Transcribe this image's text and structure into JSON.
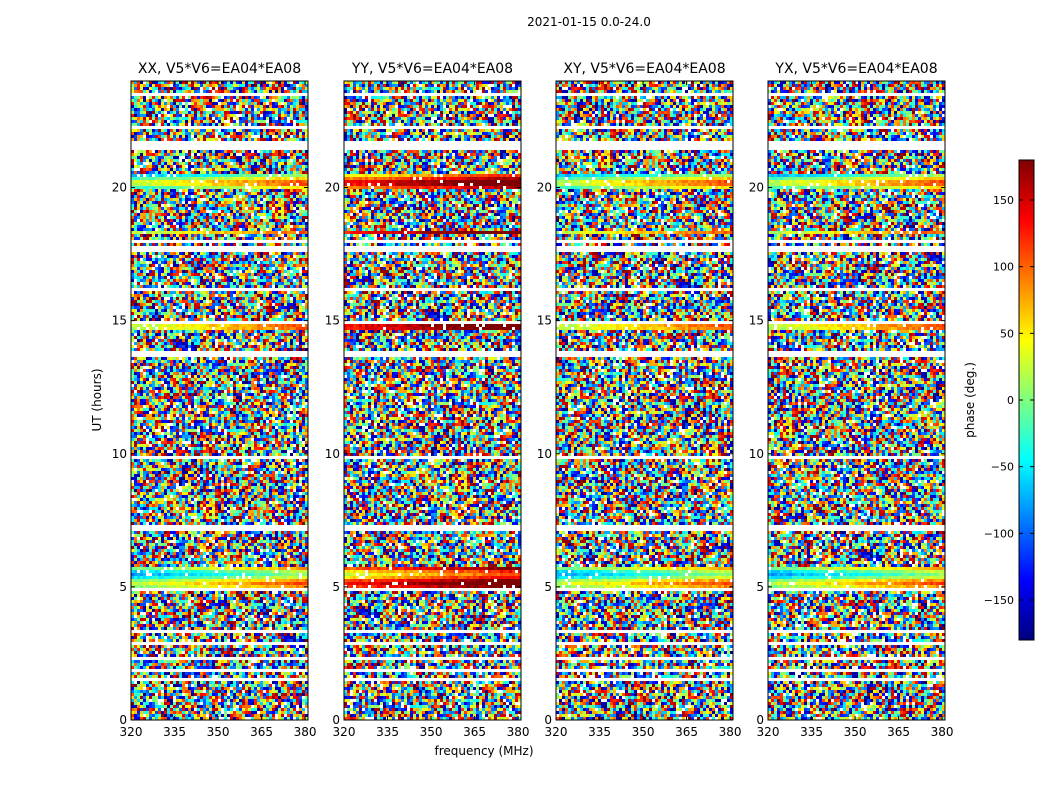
{
  "figure": {
    "suptitle": "2021-01-15 0.0-24.0",
    "xlabel": "frequency (MHz)",
    "ylabel": "UT (hours)"
  },
  "colorbar": {
    "label": "phase (deg.)",
    "ticks": [
      150,
      100,
      50,
      0,
      -50,
      -100,
      -150
    ],
    "tick_labels": [
      "150",
      "100",
      "50",
      "0",
      "−50",
      "−100",
      "−150"
    ],
    "range": [
      -180,
      180
    ],
    "colormap": "jet",
    "colormap_stops": [
      "#00007f",
      "#0000ff",
      "#007fff",
      "#00ffff",
      "#7fff7f",
      "#ffff00",
      "#ff7f00",
      "#ff0000",
      "#7f0000"
    ]
  },
  "chart_data": {
    "type": "heatmap",
    "value_meaning": "visibility phase in degrees, colour-mapped; white = flagged / no data",
    "xlim": [
      320,
      381
    ],
    "ylim": [
      0,
      24
    ],
    "xticks": [
      320,
      335,
      350,
      365,
      380
    ],
    "xtick_labels": [
      "320",
      "335",
      "350",
      "365",
      "380"
    ],
    "yticks": [
      0,
      5,
      10,
      15,
      20
    ],
    "ytick_labels": [
      "0",
      "5",
      "10",
      "15",
      "20"
    ],
    "panels": [
      {
        "title": "XX, V5*V6=EA04*EA08",
        "polarization": "XX"
      },
      {
        "title": "YY, V5*V6=EA04*EA08",
        "polarization": "YY"
      },
      {
        "title": "XY, V5*V6=EA04*EA08",
        "polarization": "XY"
      },
      {
        "title": "YX, V5*V6=EA04*EA08",
        "polarization": "YX"
      }
    ],
    "flagged_time_ranges_hours": [
      [
        1.45,
        1.55
      ],
      [
        1.8,
        1.9
      ],
      [
        2.3,
        2.4
      ],
      [
        2.85,
        2.95
      ],
      [
        3.3,
        3.4
      ],
      [
        4.9,
        5.0
      ],
      [
        7.1,
        7.3
      ],
      [
        9.75,
        9.95
      ],
      [
        13.65,
        13.85
      ],
      [
        14.85,
        14.95
      ],
      [
        16.1,
        16.2
      ],
      [
        17.55,
        17.8
      ],
      [
        17.95,
        18.05
      ],
      [
        21.45,
        21.7
      ],
      [
        22.15,
        22.3
      ],
      [
        23.45,
        23.6
      ]
    ],
    "coherent_phase_bands": [
      {
        "time_range_hours": [
          4.95,
          5.7
        ],
        "description": "smooth phase band, frequency-dependent"
      },
      {
        "time_range_hours": [
          18.2,
          18.4
        ],
        "description": "coherent band (cyan in XX, yellow in YY)"
      },
      {
        "time_range_hours": [
          14.6,
          15.0
        ],
        "description": "coherent band near 350-365 MHz"
      },
      {
        "time_range_hours": [
          20.0,
          20.5
        ],
        "description": "coherent band (red in YY)"
      }
    ]
  }
}
